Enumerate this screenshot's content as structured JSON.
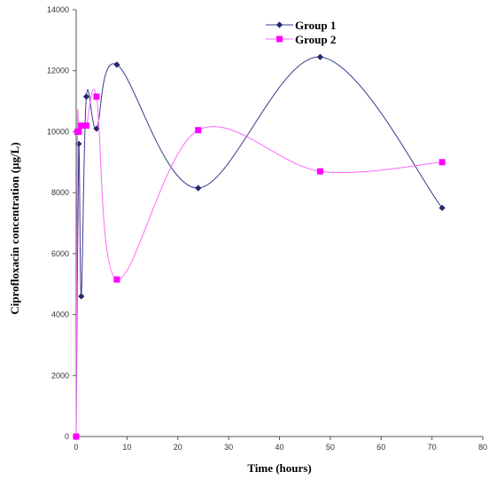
{
  "chart_data": {
    "type": "scatter",
    "title": "",
    "xlabel": "Time (hours)",
    "ylabel": "Ciprofloxacin concentration (µg/L)",
    "xlim": [
      0,
      80
    ],
    "ylim": [
      0,
      14000
    ],
    "x_ticks": [
      0,
      10,
      20,
      30,
      40,
      50,
      60,
      70,
      80
    ],
    "y_ticks": [
      0,
      2000,
      4000,
      6000,
      8000,
      10000,
      12000,
      14000
    ],
    "grid": false,
    "legend_position": "top-right",
    "smooth_lines": true,
    "series": [
      {
        "name": "Group 1",
        "color": "#3b3b8f",
        "marker": "diamond",
        "marker_color": "#1f2a6b",
        "points": [
          [
            0,
            0
          ],
          [
            0.5,
            9600
          ],
          [
            1,
            4600
          ],
          [
            2,
            11150
          ],
          [
            4,
            10100
          ],
          [
            8,
            12200
          ],
          [
            24,
            8150
          ],
          [
            48,
            12450
          ],
          [
            72,
            7500
          ]
        ]
      },
      {
        "name": "Group 2",
        "color": "#ff66ff",
        "marker": "square",
        "marker_color": "#ff00ff",
        "points": [
          [
            0,
            0
          ],
          [
            0.25,
            10000
          ],
          [
            0.5,
            10000
          ],
          [
            1,
            10200
          ],
          [
            2,
            10200
          ],
          [
            4,
            11150
          ],
          [
            8,
            5150
          ],
          [
            24,
            10050
          ],
          [
            48,
            8700
          ],
          [
            72,
            9000
          ]
        ]
      }
    ]
  }
}
